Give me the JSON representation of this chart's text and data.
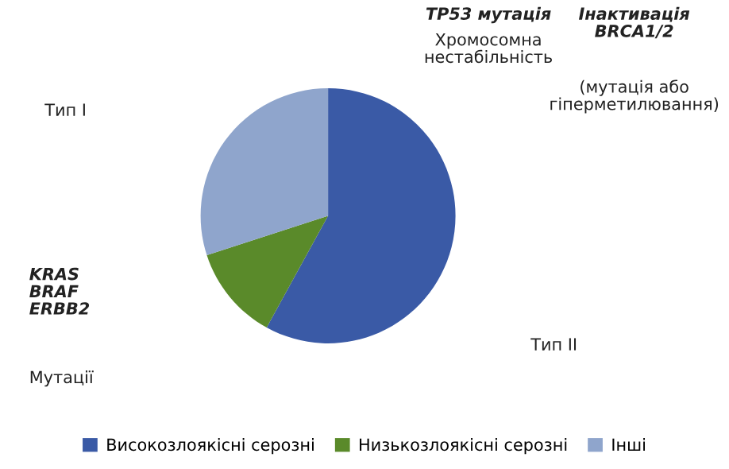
{
  "chart_data": {
    "type": "pie",
    "categories": [
      "Високозлоякісні серозні",
      "Низькозлоякісні серозні",
      "Інші"
    ],
    "values": [
      58,
      12,
      30
    ],
    "colors": [
      "#3a5aa6",
      "#5a8a2a",
      "#8fa5cc"
    ],
    "legend": "bottom",
    "annotations": [
      "TP53 мутація",
      "Хромосомна\nнестабільність",
      "Інактивація\nBRCA1/2",
      "(мутація або\nгіперметилювання)",
      "Тип І",
      "Тип ІІ",
      "KRAS\nBRAF\nERBB2",
      "Мутації"
    ]
  }
}
